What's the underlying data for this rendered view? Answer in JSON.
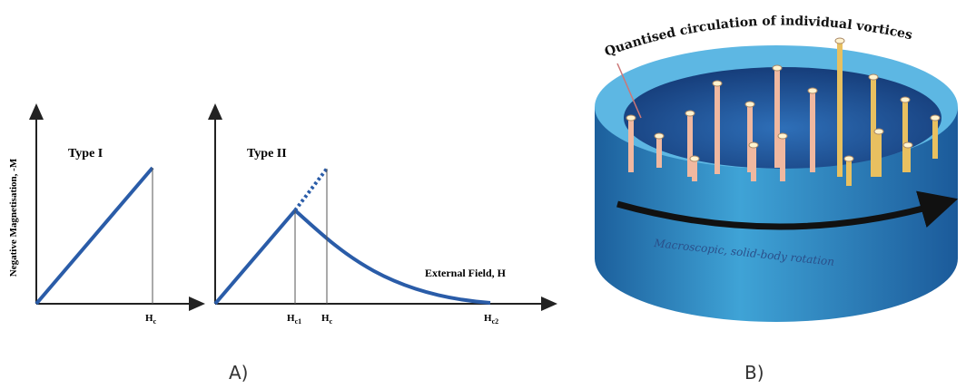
{
  "panel_a": {
    "y_axis_label": "Negative Magnetisation, -M",
    "type1": {
      "title": "Type I",
      "hc": {
        "main": "H",
        "sub": "c"
      }
    },
    "type2": {
      "title": "Type II",
      "hc1": {
        "main": "H",
        "sub": "c1"
      },
      "hc": {
        "main": "H",
        "sub": "c"
      },
      "hc2": {
        "main": "H",
        "sub": "c2"
      },
      "x_axis_label": "External Field, H"
    },
    "label": "A)"
  },
  "panel_b": {
    "top_label": "Quantised circulation of individual vortices",
    "side_label": "Macroscopic, solid-body rotation",
    "label": "B)"
  }
}
